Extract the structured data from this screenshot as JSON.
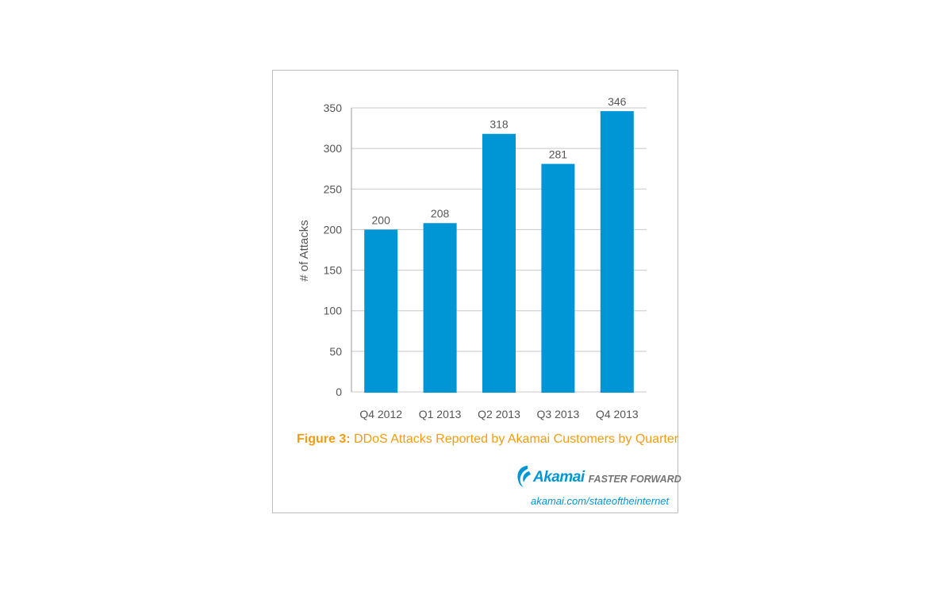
{
  "colors": {
    "bar": "#0096d6",
    "accent_orange": "#f39c12",
    "logo_blue": "#0096d6",
    "grid": "#c8c8c8",
    "axis_text": "#555555"
  },
  "chart_data": {
    "type": "bar",
    "categories": [
      "Q4 2012",
      "Q1 2013",
      "Q2 2013",
      "Q3 2013",
      "Q4 2013"
    ],
    "values": [
      200,
      208,
      318,
      281,
      346
    ],
    "data_labels": [
      "200",
      "208",
      "318",
      "281",
      "346"
    ],
    "ylabel": "# of Attacks",
    "xlabel": "",
    "ylim": [
      0,
      350
    ],
    "yticks": [
      0,
      50,
      100,
      150,
      200,
      250,
      300,
      350
    ],
    "grid": true
  },
  "caption": {
    "figure_label": "Figure 3:",
    "text": " DDoS Attacks Reported by Akamai Customers by Quarter"
  },
  "branding": {
    "logo_text": "Akamai",
    "logo_icon": "akamai-swoosh-icon",
    "tagline": "FASTER FORWARD",
    "url": "akamai.com/stateoftheinternet"
  }
}
